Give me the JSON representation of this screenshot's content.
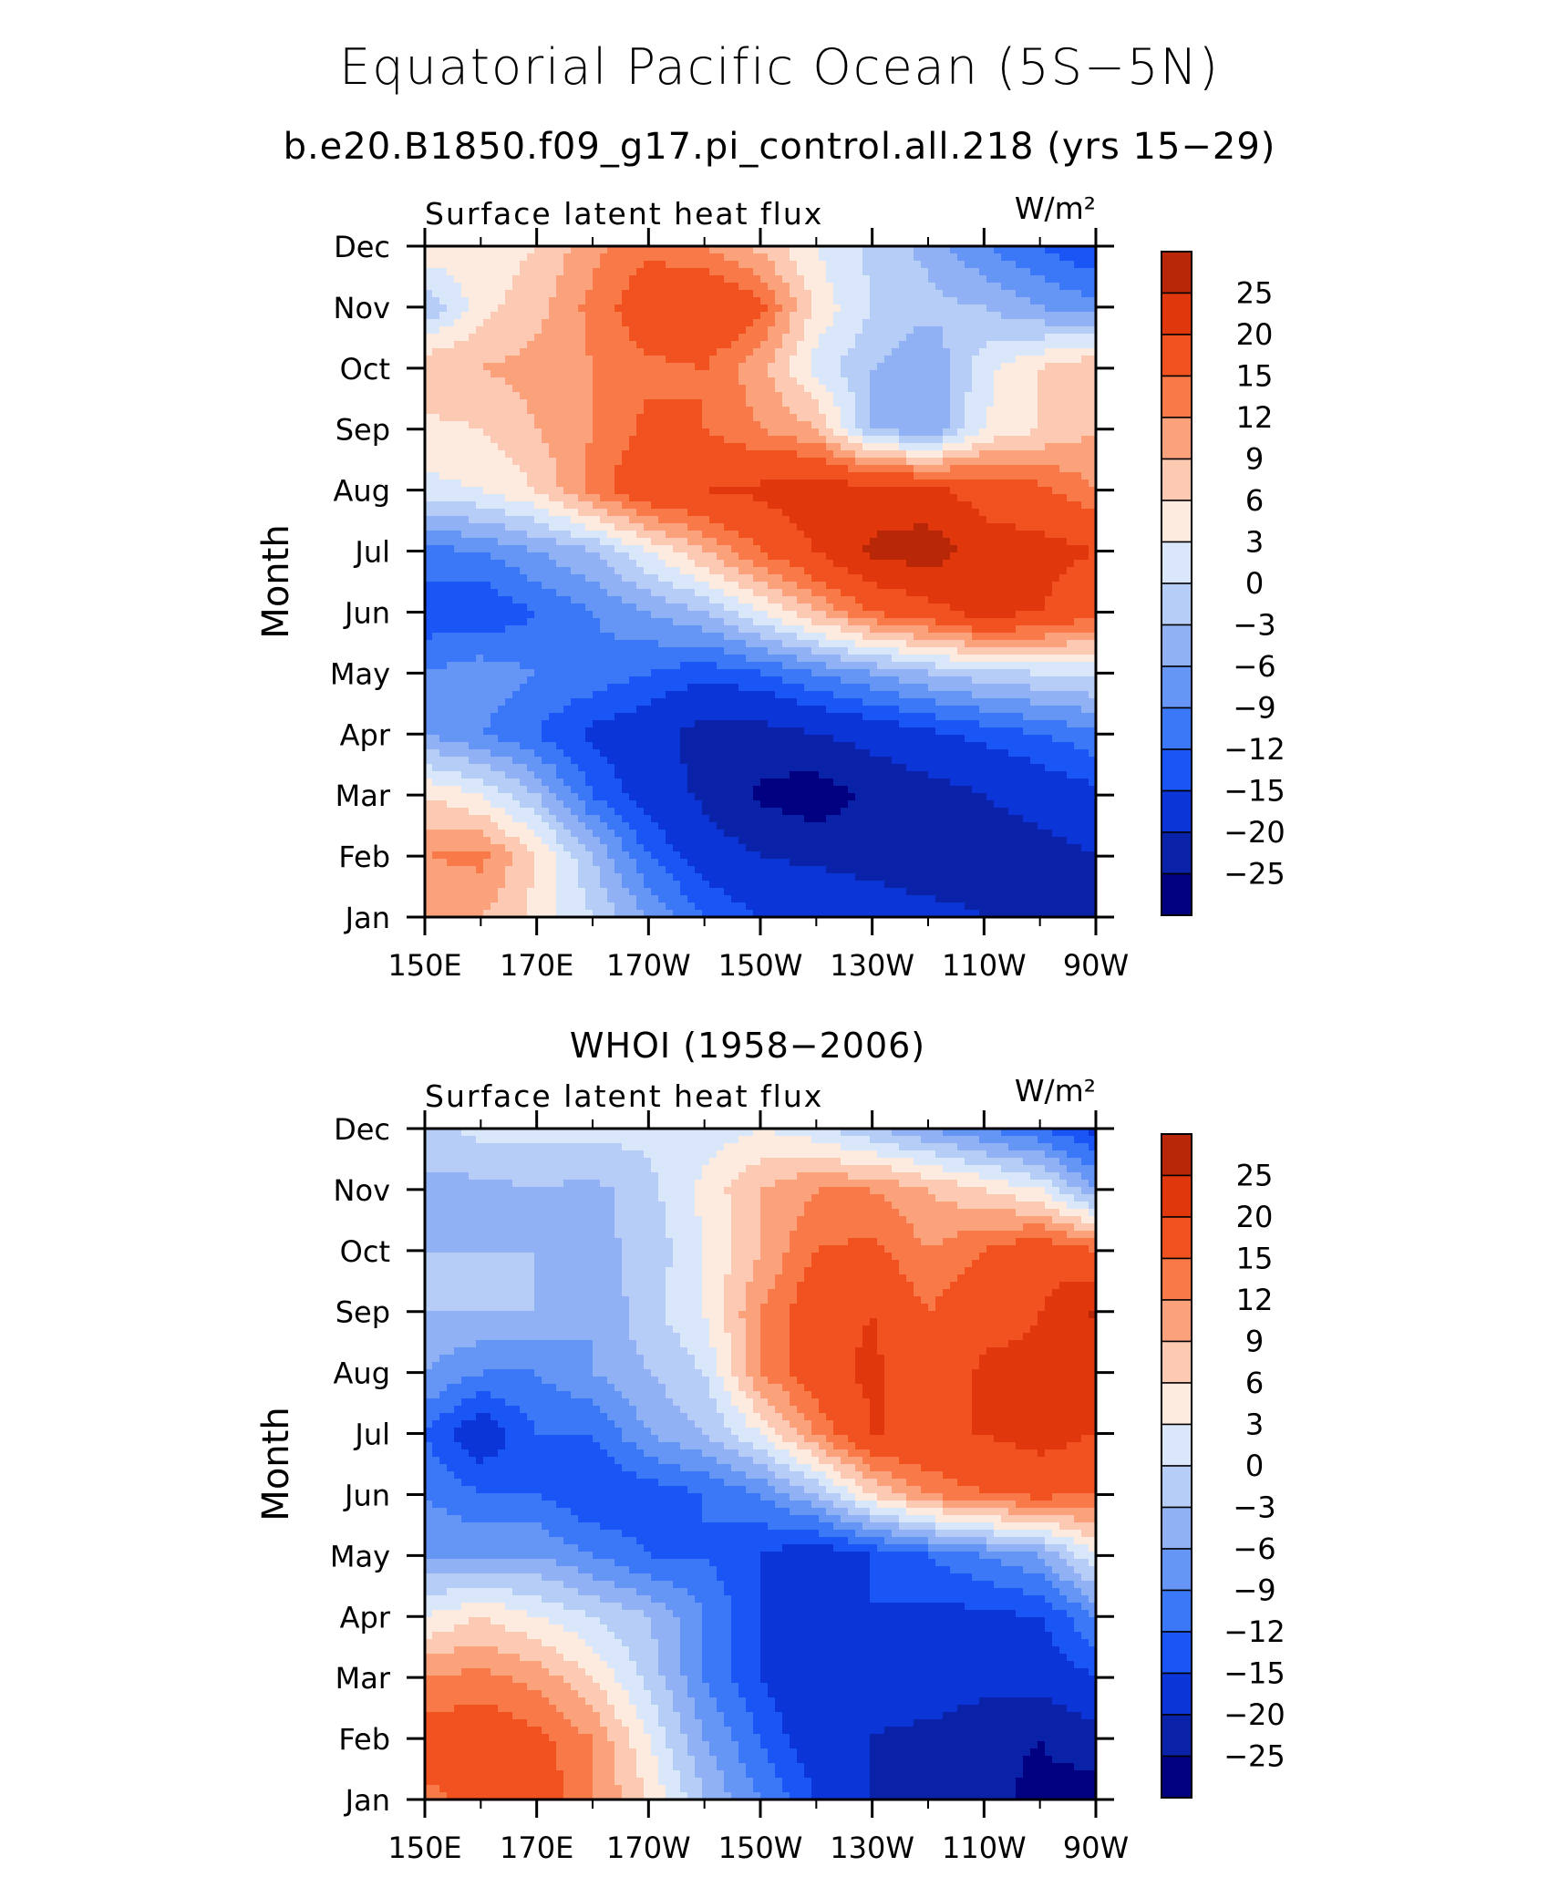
{
  "title": "Equatorial Pacific Ocean (5S−5N)",
  "subtitle": "b.e20.B1850.f09_g17.pi_control.all.218 (yrs 15−29)",
  "colors": {
    "palette": [
      "#000080",
      "#0a22a8",
      "#0b35d6",
      "#1a55f5",
      "#3b78f7",
      "#6595f5",
      "#90b2f5",
      "#b6cdf7",
      "#dae7fb",
      "#fdebe0",
      "#fcc9b2",
      "#fba27d",
      "#f87a48",
      "#f2521f",
      "#e0380c",
      "#b82708",
      "#8b0000"
    ]
  },
  "chart_data": [
    {
      "type": "heatmap",
      "name": "model",
      "left_label": "Surface latent heat flux",
      "right_label": "W/m²",
      "ylabel": "Month",
      "x_ticks": [
        "150E",
        "170E",
        "170W",
        "150W",
        "130W",
        "110W",
        "90W"
      ],
      "y_ticks": [
        "Jan",
        "Feb",
        "Mar",
        "Apr",
        "May",
        "Jun",
        "Jul",
        "Aug",
        "Sep",
        "Oct",
        "Nov",
        "Dec"
      ],
      "xlim_lon_east": [
        150,
        270
      ],
      "levels": [
        -25,
        -20,
        -15,
        -12,
        -9,
        -6,
        -3,
        0,
        3,
        6,
        9,
        12,
        15,
        20,
        25
      ],
      "colorbar_labels": [
        "25",
        "20",
        "15",
        "12",
        "9",
        "6",
        "3",
        "0",
        "−3",
        "−6",
        "−9",
        "−12",
        "−15",
        "−20",
        "−25"
      ],
      "row_months": [
        "Jan",
        "Feb",
        "Mar",
        "Apr",
        "May",
        "Jun",
        "Jul",
        "Aug",
        "Sep",
        "Oct",
        "Nov",
        "Dec"
      ],
      "col_lons": [
        150,
        160,
        170,
        180,
        190,
        200,
        210,
        220,
        230,
        240,
        250,
        260,
        270
      ],
      "values": [
        [
          9,
          9,
          5,
          0,
          -6,
          -12,
          -15,
          -16,
          -17,
          -18,
          -20,
          -22,
          -20
        ],
        [
          12,
          13,
          6,
          -3,
          -12,
          -17,
          -20,
          -21,
          -22,
          -24,
          -23,
          -22,
          -20
        ],
        [
          6,
          3,
          -3,
          -12,
          -17,
          -21,
          -26,
          -28,
          -24,
          -22,
          -20,
          -18,
          -16
        ],
        [
          -6,
          -9,
          -12,
          -16,
          -18,
          -22,
          -22,
          -20,
          -18,
          -16,
          -14,
          -12,
          -10
        ],
        [
          -9,
          -7,
          -9,
          -10,
          -12,
          -14,
          -12,
          -9,
          -6,
          -3,
          -1,
          0,
          1
        ],
        [
          -14,
          -15,
          -12,
          -9,
          -6,
          -3,
          3,
          9,
          15,
          18,
          22,
          20,
          16
        ],
        [
          -10,
          -9,
          -6,
          -3,
          3,
          9,
          15,
          20,
          26,
          28,
          22,
          22,
          20
        ],
        [
          2,
          3,
          6,
          13,
          19,
          20,
          21,
          23,
          22,
          21,
          18,
          16,
          12
        ],
        [
          5,
          6,
          9,
          12,
          16,
          15,
          12,
          9,
          -3,
          -6,
          3,
          6,
          9
        ],
        [
          9,
          9,
          10,
          12,
          14,
          15,
          10,
          2,
          -3,
          -6,
          2,
          6,
          9
        ],
        [
          -3,
          5,
          8,
          13,
          18,
          20,
          16,
          5,
          0,
          -2,
          -3,
          -6,
          -8
        ],
        [
          6,
          4,
          6,
          11,
          14,
          12,
          8,
          3,
          -1,
          -4,
          -9,
          -12,
          -15
        ]
      ]
    },
    {
      "type": "heatmap",
      "name": "obs",
      "title": "WHOI (1958−2006)",
      "left_label": "Surface latent heat flux",
      "right_label": "W/m²",
      "ylabel": "Month",
      "x_ticks": [
        "150E",
        "170E",
        "170W",
        "150W",
        "130W",
        "110W",
        "90W"
      ],
      "y_ticks": [
        "Jan",
        "Feb",
        "Mar",
        "Apr",
        "May",
        "Jun",
        "Jul",
        "Aug",
        "Sep",
        "Oct",
        "Nov",
        "Dec"
      ],
      "xlim_lon_east": [
        150,
        270
      ],
      "levels": [
        -25,
        -20,
        -15,
        -12,
        -9,
        -6,
        -3,
        0,
        3,
        6,
        9,
        12,
        15,
        20,
        25
      ],
      "colorbar_labels": [
        "25",
        "20",
        "15",
        "12",
        "9",
        "6",
        "3",
        "0",
        "−3",
        "−6",
        "−9",
        "−12",
        "−15",
        "−20",
        "−25"
      ],
      "row_months": [
        "Jan",
        "Feb",
        "Mar",
        "Apr",
        "May",
        "Jun",
        "Jul",
        "Aug",
        "Sep",
        "Oct",
        "Nov",
        "Dec"
      ],
      "col_lons": [
        150,
        160,
        170,
        180,
        190,
        200,
        210,
        220,
        230,
        240,
        250,
        260,
        270
      ],
      "values": [
        [
          14,
          16,
          18,
          12,
          6,
          -3,
          -9,
          -15,
          -20,
          -22,
          -24,
          -26,
          -28
        ],
        [
          17,
          18,
          16,
          12,
          3,
          -6,
          -12,
          -18,
          -20,
          -22,
          -24,
          -25,
          -22
        ],
        [
          12,
          13,
          11,
          6,
          -1,
          -9,
          -15,
          -20,
          -18,
          -15,
          -18,
          -18,
          -15
        ],
        [
          3,
          6,
          3,
          0,
          -3,
          -9,
          -15,
          -18,
          -15,
          -16,
          -16,
          -15,
          -9
        ],
        [
          -6,
          -6,
          -6,
          -9,
          -12,
          -12,
          -15,
          -18,
          -15,
          -12,
          -9,
          -6,
          3
        ],
        [
          -9,
          -12,
          -12,
          -15,
          -14,
          -12,
          -9,
          -3,
          6,
          12,
          15,
          16,
          15
        ],
        [
          -12,
          -18,
          -12,
          -12,
          -6,
          -3,
          3,
          12,
          20,
          20,
          20,
          22,
          20
        ],
        [
          -6,
          -9,
          -9,
          -6,
          -3,
          0,
          12,
          18,
          21,
          16,
          21,
          21,
          20
        ],
        [
          -3,
          -3,
          -3,
          -6,
          -1,
          3,
          12,
          18,
          20,
          15,
          18,
          20,
          26
        ],
        [
          -3,
          -3,
          -3,
          -4,
          -2,
          3,
          9,
          15,
          16,
          12,
          15,
          18,
          15
        ],
        [
          -4,
          -4,
          -3,
          -4,
          -1,
          4,
          9,
          12,
          12,
          9,
          6,
          3,
          -6
        ],
        [
          -1,
          1,
          1,
          1,
          1,
          1,
          3,
          1,
          -3,
          -6,
          -9,
          -12,
          -16
        ]
      ]
    }
  ]
}
